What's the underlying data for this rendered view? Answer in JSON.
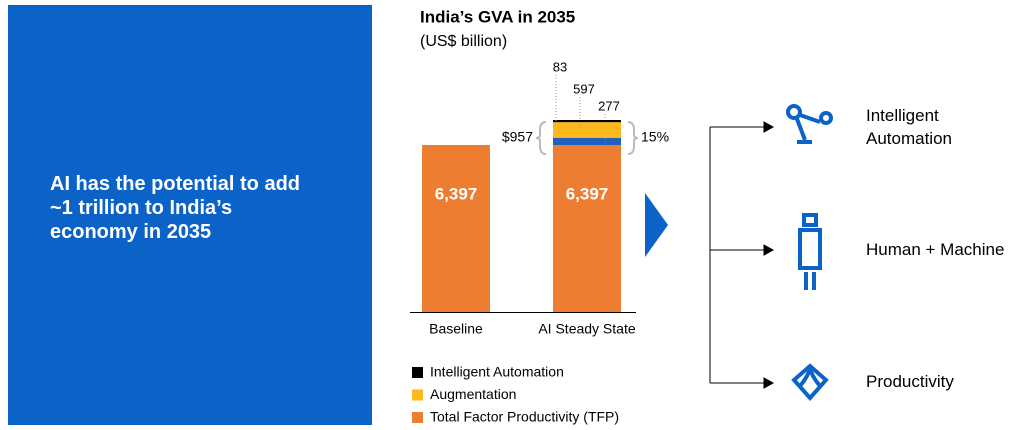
{
  "headline": "AI has the potential to add ~1 trillion to India’s economy in 2035",
  "chart_data": {
    "type": "bar",
    "stacked": true,
    "title": "India’s GVA in 2035",
    "subtitle": "(US$ billion)",
    "categories": [
      "Baseline",
      "AI Steady State"
    ],
    "series": [
      {
        "name": "Total Factor Productivity (TFP)",
        "color": "#ed7d31",
        "values": [
          6397,
          6397
        ],
        "value_labels": [
          "6,397",
          "6,397"
        ]
      },
      {
        "color": "#1f5fbf",
        "values": [
          null,
          277
        ]
      },
      {
        "name": "Augmentation",
        "color": "#ffb81c",
        "values": [
          null,
          597
        ]
      },
      {
        "name": "Intelligent Automation",
        "color": "#000000",
        "values": [
          null,
          83
        ]
      }
    ],
    "annotations": [
      "$957",
      "15%"
    ]
  },
  "flow": [
    "Intelligent Automation",
    "Human + Machine",
    "Productivity"
  ]
}
